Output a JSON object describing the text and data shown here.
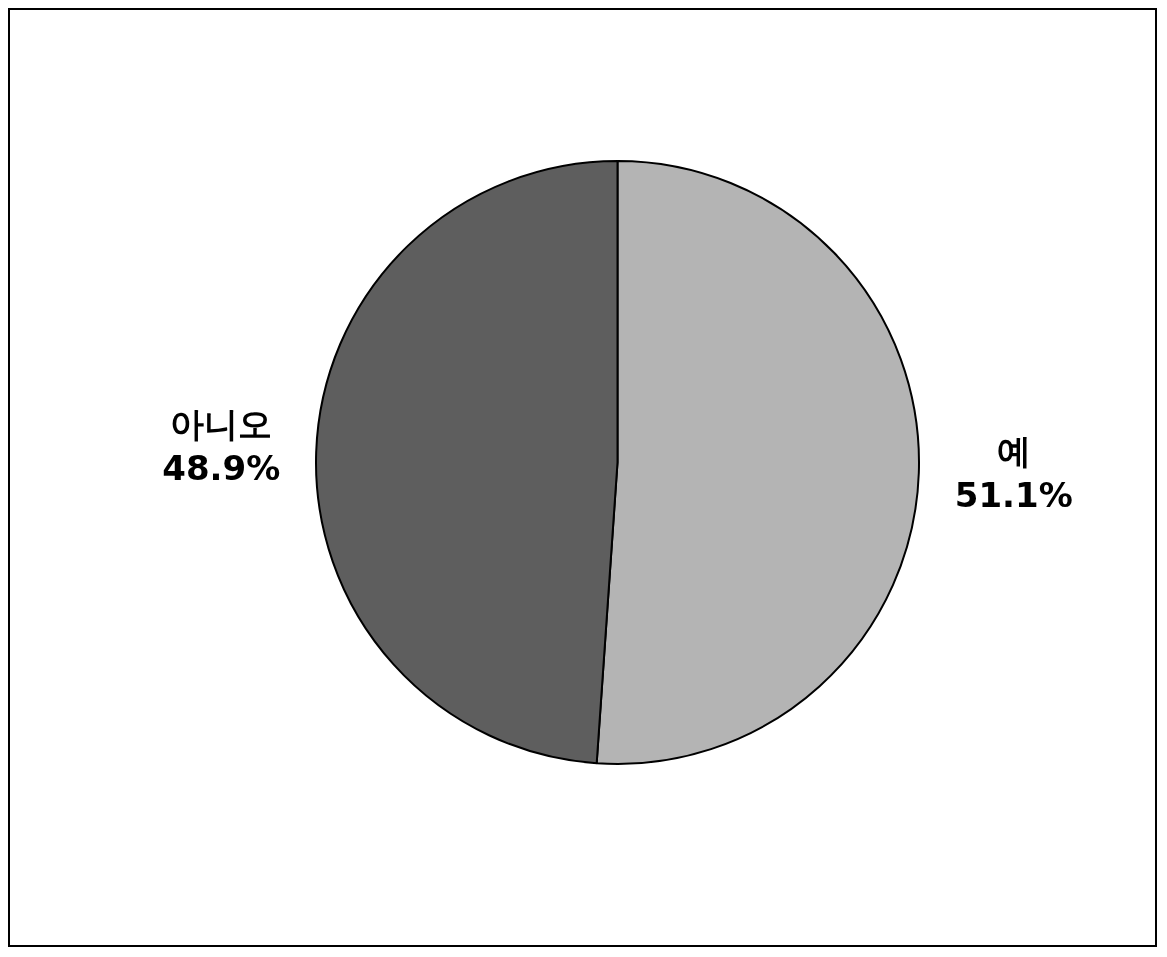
{
  "chart_data": {
    "type": "pie",
    "categories": [
      "예",
      "아니오"
    ],
    "values": [
      51.1,
      48.9
    ],
    "value_labels": [
      "51.1%",
      "48.9%"
    ],
    "colors": [
      "#b4b4b4",
      "#5e5e5e"
    ],
    "legend": false
  }
}
